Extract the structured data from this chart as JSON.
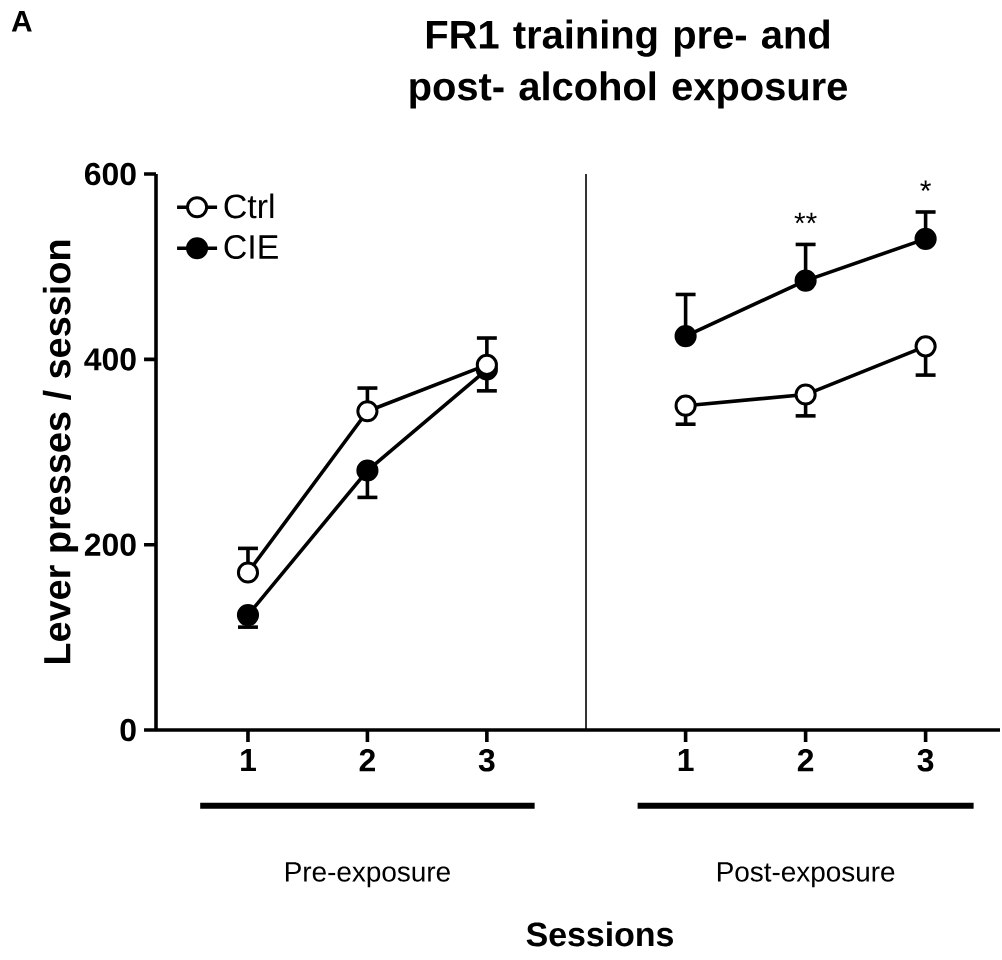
{
  "chart_data": [
    {
      "type": "line",
      "title": "FR1 training pre- and\npost- alcohol exposure",
      "ylabel": "Lever presses / session",
      "xlabel": "Pre-exposure",
      "categories": [
        "1",
        "2",
        "3"
      ],
      "ylim": [
        0,
        600
      ],
      "yticks": [
        0,
        200,
        400,
        600
      ],
      "marker": "circle",
      "legend": "top left",
      "annotations": [
        "A",
        "Sessions"
      ],
      "series": [
        {
          "name": "Ctrl",
          "color": "#000000",
          "colors": [
            "#ffffff",
            "#ffffff",
            "#ffffff"
          ],
          "values": [
            170,
            344,
            394
          ],
          "errors": [
            [
              170,
              196
            ],
            [
              344,
              369
            ],
            [
              394,
              423
            ]
          ]
        },
        {
          "name": "CIE",
          "color": "#000000",
          "colors": [
            "#000000",
            "#000000",
            "#000000"
          ],
          "values": [
            124,
            280,
            389
          ],
          "errors": [
            [
              111,
              124
            ],
            [
              251,
              280
            ],
            [
              366,
              389
            ]
          ]
        }
      ]
    },
    {
      "type": "line",
      "xlabel": "Post-exposure",
      "categories": [
        "1",
        "2",
        "3"
      ],
      "ylim": [
        0,
        600
      ],
      "tick_labels": "x",
      "marker": "circle",
      "annotations": [
        "**",
        "*"
      ],
      "series": [
        {
          "color": "#000000",
          "colors": [
            "#ffffff",
            "#ffffff",
            "#ffffff"
          ],
          "values": [
            350,
            362,
            414
          ],
          "errors": [
            [
              330,
              350
            ],
            [
              339,
              362
            ],
            [
              383,
              414
            ]
          ]
        },
        {
          "color": "#000000",
          "colors": [
            "#000000",
            "#000000",
            "#000000"
          ],
          "values": [
            425,
            485,
            530
          ],
          "errors": [
            [
              425,
              470
            ],
            [
              485,
              524
            ],
            [
              530,
              559
            ]
          ]
        }
      ]
    }
  ]
}
